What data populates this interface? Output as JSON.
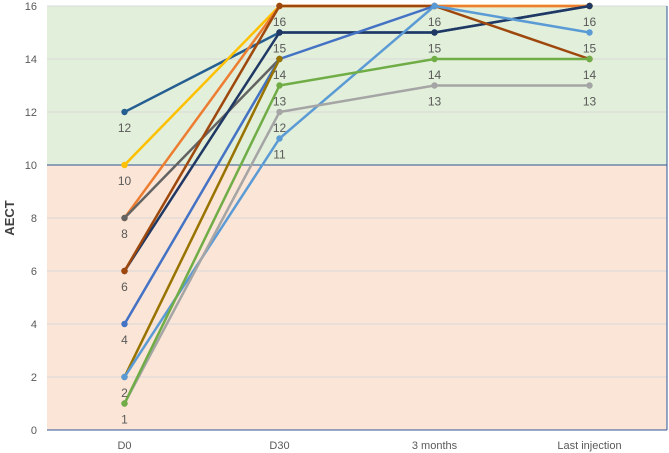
{
  "chart_data": {
    "type": "line",
    "title": "",
    "xlabel": "",
    "ylabel": "AECT",
    "categories": [
      "D0",
      "D30",
      "3 months",
      "Last injection"
    ],
    "ylim": [
      0,
      16
    ],
    "yticks": [
      0,
      2,
      4,
      6,
      8,
      10,
      12,
      14,
      16
    ],
    "grid": true,
    "bands": [
      {
        "from": 10,
        "to": 16,
        "color": "#e2efda"
      },
      {
        "from": 0,
        "to": 10,
        "color": "#fbe5d6"
      }
    ],
    "series": [
      {
        "color": "#255e91",
        "values": [
          12,
          15,
          15,
          16
        ]
      },
      {
        "color": "#ffc000",
        "values": [
          10,
          16,
          16,
          16
        ]
      },
      {
        "color": "#ed7d31",
        "values": [
          8,
          16,
          16,
          16
        ]
      },
      {
        "color": "#636363",
        "values": [
          8,
          14,
          null,
          null
        ]
      },
      {
        "color": "#1f3864",
        "values": [
          6,
          15,
          15,
          16
        ]
      },
      {
        "color": "#9e480e",
        "values": [
          6,
          16,
          16,
          14
        ]
      },
      {
        "color": "#4472c4",
        "values": [
          4,
          14,
          16,
          null
        ]
      },
      {
        "color": "#997300",
        "values": [
          2,
          14,
          null,
          null
        ]
      },
      {
        "color": "#5b9bd5",
        "values": [
          2,
          11,
          16,
          15
        ]
      },
      {
        "color": "#a5a5a5",
        "values": [
          1,
          12,
          13,
          13
        ]
      },
      {
        "color": "#70ad47",
        "values": [
          1,
          13,
          14,
          14
        ]
      }
    ],
    "data_labels": [
      [
        "12",
        "10",
        "8",
        "6",
        "4",
        "2",
        "1"
      ],
      [
        "16",
        "15",
        "14",
        "13",
        "12",
        "11"
      ],
      [
        "16",
        "15",
        "14",
        "13"
      ],
      [
        "16",
        "15",
        "14",
        "13"
      ]
    ]
  }
}
